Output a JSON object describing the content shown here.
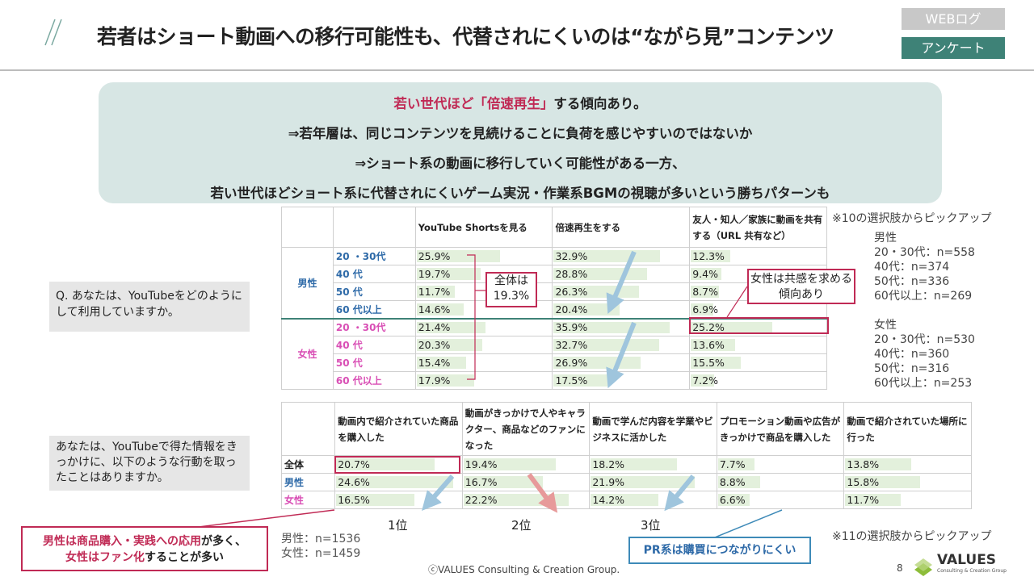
{
  "header": {
    "title": "若者はショート動画への移行可能性も、代替されにくいのは“ながら見”コンテンツ",
    "tag1": "WEBログ",
    "tag2": "アンケート"
  },
  "summary": {
    "line1_highlight": "若い世代ほど「倍速再生」",
    "line1_rest": "する傾向あり。",
    "line2": "⇒若年層は、同じコンテンツを見続けることに負荷を感じやすいのではないか",
    "line3": "⇒ショート系の動画に移行していく可能性がある一方、",
    "line4": "若い世代ほどショート系に代替されにくいゲーム実況・作業系BGMの視聴が多いという勝ちパターンも"
  },
  "table1": {
    "headers": [
      "YouTube Shortsを見る",
      "倍速再生をする",
      "友人・知人／家族に動画を共有する（URL 共有など）"
    ],
    "group_male": "男性",
    "group_female": "女性",
    "rows": [
      {
        "label": "20 ・30代",
        "values": [
          "25.9%",
          "32.9%",
          "12.3%"
        ],
        "nums": [
          25.9,
          32.9,
          12.3
        ]
      },
      {
        "label": "40 代",
        "values": [
          "19.7%",
          "28.8%",
          "9.4%"
        ],
        "nums": [
          19.7,
          28.8,
          9.4
        ]
      },
      {
        "label": "50 代",
        "values": [
          "11.7%",
          "26.3%",
          "8.7%"
        ],
        "nums": [
          11.7,
          26.3,
          8.7
        ]
      },
      {
        "label": "60 代以上",
        "values": [
          "14.6%",
          "20.4%",
          "6.9%"
        ],
        "nums": [
          14.6,
          20.4,
          6.9
        ]
      },
      {
        "label": "20 ・30代",
        "values": [
          "21.4%",
          "35.9%",
          "25.2%"
        ],
        "nums": [
          21.4,
          35.9,
          25.2
        ]
      },
      {
        "label": "40 代",
        "values": [
          "20.3%",
          "32.7%",
          "13.6%"
        ],
        "nums": [
          20.3,
          32.7,
          13.6
        ]
      },
      {
        "label": "50 代",
        "values": [
          "15.4%",
          "26.9%",
          "15.5%"
        ],
        "nums": [
          15.4,
          26.9,
          15.5
        ]
      },
      {
        "label": "60 代以上",
        "values": [
          "17.9%",
          "17.5%",
          "7.2%"
        ],
        "nums": [
          17.9,
          17.5,
          7.2
        ]
      }
    ]
  },
  "question1": "Q. あなたは、YouTubeをどのようにして利用していますか。",
  "callout_total": "全体は\n19.3%",
  "callout_female": "女性は共感を求める傾向あり",
  "side_note": {
    "pick": "※10の選択肢からピックアップ",
    "male": "男性",
    "male_lines": [
      "20・30代：n=558",
      "40代：n=374",
      "50代：n=336",
      "60代以上：n=269"
    ],
    "female": "女性",
    "female_lines": [
      "20・30代：n=530",
      "40代：n=360",
      "50代：n=316",
      "60代以上：n=253"
    ]
  },
  "table2": {
    "headers": [
      "動画内で紹介されていた商品を購入した",
      "動画がきっかけで人やキャラクター、商品などのファンになった",
      "動画で学んだ内容を学業やビジネスに活かした",
      "プロモーション動画や広告がきっかけで商品を購入した",
      "動画で紹介されていた場所に行った"
    ],
    "rows": [
      {
        "label": "全体",
        "values": [
          "20.7%",
          "19.4%",
          "18.2%",
          "7.7%",
          "13.8%"
        ],
        "nums": [
          20.7,
          19.4,
          18.2,
          7.7,
          13.8
        ]
      },
      {
        "label": "男性",
        "values": [
          "24.6%",
          "16.7%",
          "21.9%",
          "8.8%",
          "15.8%"
        ],
        "nums": [
          24.6,
          16.7,
          21.9,
          8.8,
          15.8
        ]
      },
      {
        "label": "女性",
        "values": [
          "16.5%",
          "22.2%",
          "14.2%",
          "6.6%",
          "11.7%"
        ],
        "nums": [
          16.5,
          22.2,
          14.2,
          6.6,
          11.7
        ]
      }
    ]
  },
  "question2": "あなたは、YouTubeで得た情報をきっかけに、以下のような行動を取ったことはありますか。",
  "ranks": [
    "1位",
    "2位",
    "3位"
  ],
  "callout_bottom_left": {
    "p1": "男性は商品購入・実践への応用",
    "p2": "が多く、",
    "p3": "女性はファン化",
    "p4": "することが多い"
  },
  "callout_pr": "PR系は購買につながりにくい",
  "sample_note": [
    "男性：n=1536",
    "女性：n=1459"
  ],
  "pick2": "※11の選択肢からピックアップ",
  "footer": {
    "copyright": "ⓒVALUES Consulting & Creation Group.",
    "page": "8",
    "logo": "VALUES",
    "logo_sub": "Consulting & Creation Group"
  },
  "colors": {
    "accent": "#c02a55",
    "teal": "#3e8277",
    "male": "#2e6aa8",
    "female": "#d94fb5",
    "bar": "#e3f0dc",
    "arrow_blue": "#9fc5dd",
    "arrow_red": "#e79a9a"
  }
}
